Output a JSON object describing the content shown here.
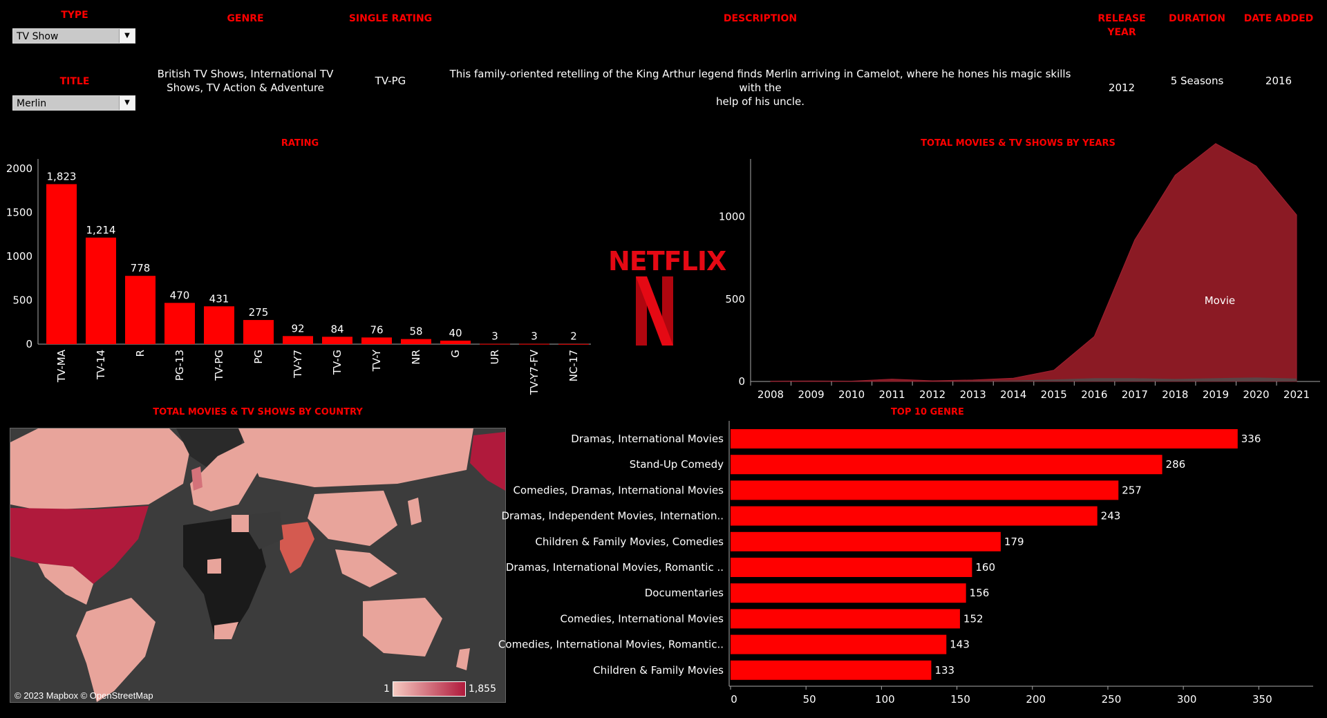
{
  "filters": {
    "type_label": "TYPE",
    "type_value": "TV Show",
    "title_label": "TITLE",
    "title_value": "Merlin"
  },
  "details": {
    "headers": {
      "genre": "GENRE",
      "rating": "SINGLE RATING",
      "description": "DESCRIPTION",
      "release_year_1": "RELEASE",
      "release_year_2": "YEAR",
      "duration": "DURATION",
      "date_added": "DATE ADDED"
    },
    "genre_1": "British TV Shows, International TV",
    "genre_2": "Shows, TV Action & Adventure",
    "rating": "TV-PG",
    "description_1": "This family-oriented retelling of the King Arthur legend finds Merlin arriving in Camelot, where he hones his magic skills with the",
    "description_2": "help of his uncle.",
    "release_year": "2012",
    "duration": "5 Seasons",
    "date_added": "2016"
  },
  "brand": {
    "name": "NETFLIX",
    "color": "#e50914"
  },
  "colors": {
    "bar": "#ff0000",
    "area_movie": "#8b1a24",
    "area_tv": "#5a4446",
    "accent": "#ff0000"
  },
  "chart_data": [
    {
      "type": "bar",
      "title": "RATING",
      "categories": [
        "TV-MA",
        "TV-14",
        "R",
        "PG-13",
        "TV-PG",
        "PG",
        "TV-Y7",
        "TV-G",
        "TV-Y",
        "NR",
        "G",
        "UR",
        "TV-Y7-FV",
        "NC-17"
      ],
      "values": [
        1823,
        1214,
        778,
        470,
        431,
        275,
        92,
        84,
        76,
        58,
        40,
        3,
        3,
        2
      ],
      "value_labels": [
        "1,823",
        "1,214",
        "778",
        "470",
        "431",
        "275",
        "92",
        "84",
        "76",
        "58",
        "40",
        "3",
        "3",
        "2"
      ],
      "y_ticks": [
        0,
        500,
        1000,
        1500,
        2000
      ],
      "ylim": [
        0,
        2000
      ]
    },
    {
      "type": "area",
      "title": "TOTAL MOVIES & TV SHOWS BY YEARS",
      "x": [
        2008,
        2009,
        2010,
        2011,
        2012,
        2013,
        2014,
        2015,
        2016,
        2017,
        2018,
        2019,
        2020,
        2021
      ],
      "series": [
        {
          "name": "Movie",
          "values": [
            1,
            2,
            1,
            13,
            3,
            6,
            14,
            56,
            253,
            839,
            1237,
            1424,
            1284,
            993
          ]
        },
        {
          "name": "",
          "values": [
            1,
            1,
            1,
            1,
            1,
            3,
            6,
            12,
            20,
            20,
            15,
            20,
            24,
            18
          ]
        }
      ],
      "y_ticks": [
        0,
        500,
        1000
      ],
      "ylim": [
        0,
        1300
      ]
    },
    {
      "type": "bar",
      "orientation": "horizontal",
      "title": "TOP 10 GENRE",
      "categories": [
        "Dramas, International Movies",
        "Stand-Up Comedy",
        "Comedies, Dramas, International Movies",
        "Dramas, Independent Movies, Internation..",
        "Children & Family Movies, Comedies",
        "Dramas, International Movies, Romantic ..",
        "Documentaries",
        "Comedies, International Movies",
        "Comedies, International Movies, Romantic..",
        "Children & Family Movies"
      ],
      "values": [
        336,
        286,
        257,
        243,
        179,
        160,
        156,
        152,
        143,
        133
      ],
      "x_ticks": [
        0,
        50,
        100,
        150,
        200,
        250,
        300,
        350
      ],
      "xlim": [
        0,
        370
      ]
    },
    {
      "type": "map",
      "title": "TOTAL MOVIES & TV SHOWS BY COUNTRY",
      "legend_min": "1",
      "legend_max": "1,855",
      "attribution": "© 2023 Mapbox © OpenStreetMap"
    }
  ]
}
